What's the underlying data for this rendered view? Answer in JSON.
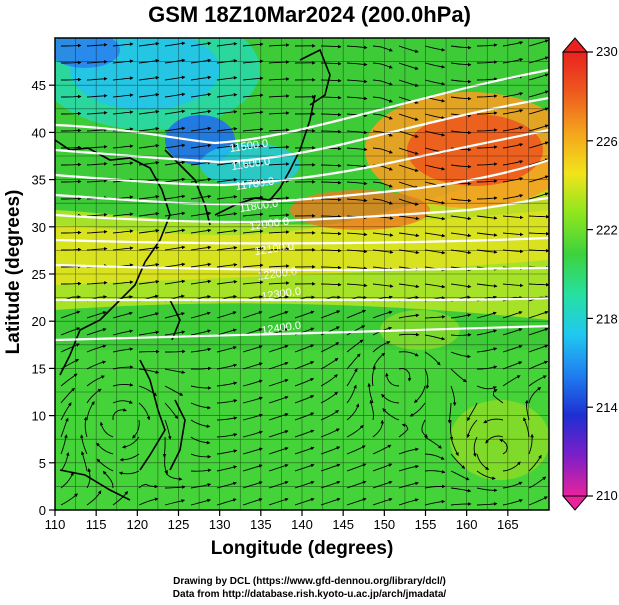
{
  "title": "GSM 18Z10Mar2024 (200.0hPa)",
  "xlabel": "Longitude (degrees)",
  "ylabel": "Latitude  (degrees)",
  "map": {
    "lon_range": [
      110,
      170
    ],
    "lat_range": [
      0,
      50
    ],
    "x_ticks": [
      110,
      115,
      120,
      125,
      130,
      135,
      140,
      145,
      150,
      155,
      160,
      165
    ],
    "y_ticks": [
      0,
      5,
      10,
      15,
      20,
      25,
      30,
      35,
      40,
      45
    ],
    "grid": true,
    "fields": [
      "temperature (color shading)",
      "geopotential height (white contours)",
      "wind (streamlines)"
    ],
    "contour_labels": [
      "11500.0",
      "11600.0",
      "11700.0",
      "11800.0",
      "12000.0",
      "12100.0",
      "12200.0",
      "12300.0",
      "12400.0"
    ]
  },
  "colorbar": {
    "min": 210,
    "max": 230,
    "ticks": [
      210,
      214,
      218,
      222,
      226,
      230
    ],
    "colors": [
      "#e8239c",
      "#7d1fc8",
      "#1e2fd2",
      "#1f7ef0",
      "#21c8f0",
      "#26e0a0",
      "#3dd23c",
      "#8ee61e",
      "#f2e31c",
      "#f4a41c",
      "#ee5a1e",
      "#e8221e"
    ]
  },
  "credits": {
    "line1": "Drawing by DCL (https://www.gfd-dennou.org/library/dcl/)",
    "line2": "Data from http://database.rish.kyoto-u.ac.jp/arch/jmadata/"
  }
}
